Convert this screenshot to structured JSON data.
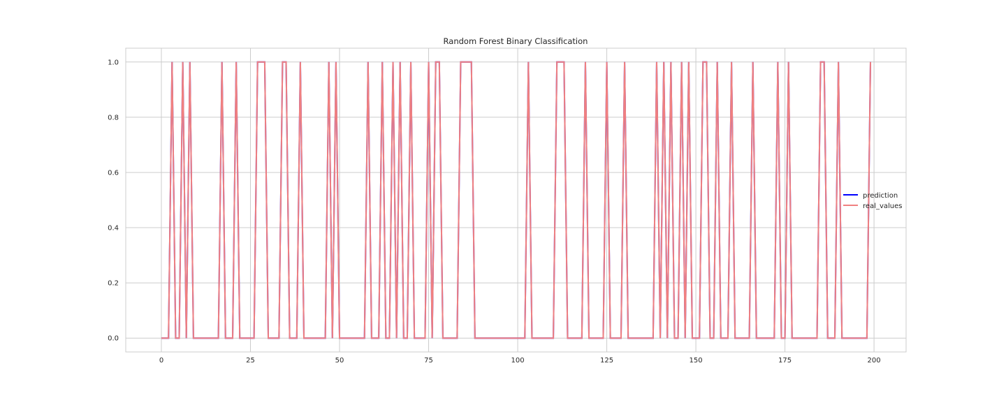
{
  "chart_data": {
    "type": "line",
    "title": "Random Forest Binary Classification",
    "xlabel": "",
    "ylabel": "",
    "xlim": [
      -10,
      209
    ],
    "ylim": [
      -0.05,
      1.05
    ],
    "xticks": [
      0,
      25,
      50,
      75,
      100,
      125,
      150,
      175,
      200
    ],
    "xtick_labels": [
      "0",
      "25",
      "50",
      "75",
      "100",
      "125",
      "150",
      "175",
      "200"
    ],
    "yticks": [
      0.0,
      0.2,
      0.4,
      0.6,
      0.8,
      1.0
    ],
    "ytick_labels": [
      "0.0",
      "0.2",
      "0.4",
      "0.6",
      "0.8",
      "1.0"
    ],
    "grid": true,
    "legend_location": "center right",
    "ones_indices": [
      3,
      6,
      8,
      17,
      21,
      27,
      28,
      29,
      34,
      35,
      39,
      47,
      49,
      58,
      62,
      65,
      67,
      70,
      75,
      77,
      78,
      84,
      85,
      86,
      87,
      103,
      111,
      112,
      113,
      119,
      125,
      130,
      139,
      141,
      143,
      146,
      148,
      152,
      153,
      156,
      160,
      166,
      173,
      176,
      185,
      186,
      190,
      199
    ],
    "x_count": 200,
    "series": [
      {
        "name": "prediction",
        "color": "#0000ff"
      },
      {
        "name": "real_values",
        "color": "#f08080"
      }
    ]
  }
}
